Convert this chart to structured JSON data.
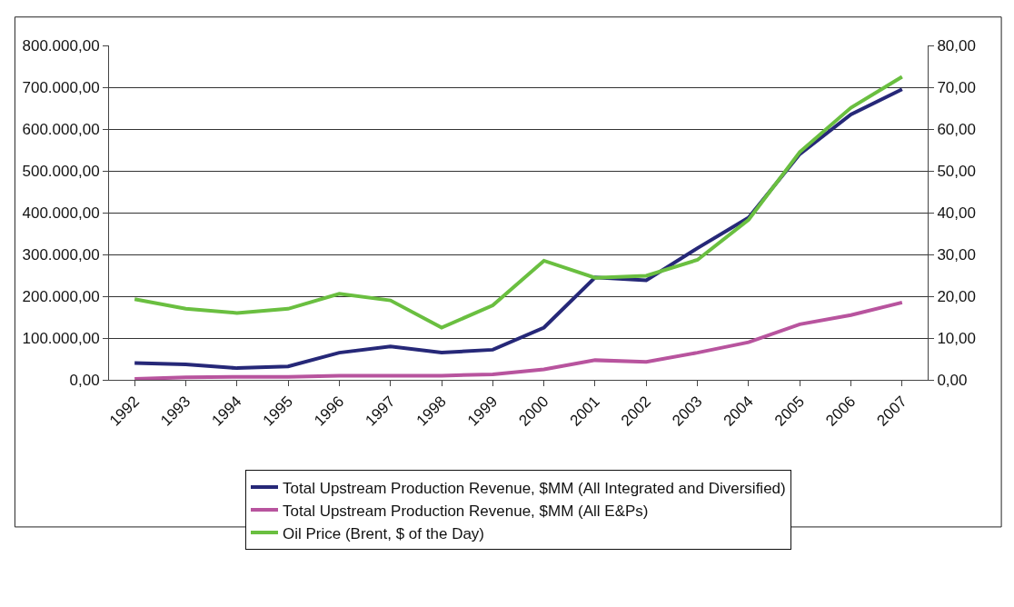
{
  "chart_data": {
    "type": "line",
    "categories": [
      "1992",
      "1993",
      "1994",
      "1995",
      "1996",
      "1997",
      "1998",
      "1999",
      "2000",
      "2001",
      "2002",
      "2003",
      "2004",
      "2005",
      "2006",
      "2007"
    ],
    "series": [
      {
        "name": "Total Upstream Production Revenue, $MM (All Integrated and Diversified)",
        "color": "#262878",
        "values": [
          40000,
          37000,
          28000,
          32000,
          65000,
          80000,
          65000,
          72000,
          125000,
          245000,
          238000,
          315000,
          388000,
          540000,
          635000,
          695000
        ]
      },
      {
        "name": "Total Upstream Production Revenue, $MM (All E&Ps)",
        "color": "#b8549e",
        "values": [
          2000,
          6000,
          7000,
          7000,
          10000,
          10000,
          10000,
          13000,
          25000,
          47000,
          43000,
          65000,
          90000,
          133000,
          155000,
          185000
        ]
      },
      {
        "name": "Oil Price (Brent, $ of the Day)",
        "color": "#6abf40",
        "axis": "y2",
        "values": [
          19.3,
          17.0,
          16.0,
          17.0,
          20.6,
          19.0,
          12.5,
          17.8,
          28.5,
          24.4,
          24.9,
          28.7,
          38.3,
          54.5,
          65.1,
          72.5
        ]
      }
    ],
    "ylim": [
      0,
      800000
    ],
    "yticks": [
      {
        "value": 0,
        "label": "0,00"
      },
      {
        "value": 100000,
        "label": "100.000,00"
      },
      {
        "value": 200000,
        "label": "200.000,00"
      },
      {
        "value": 300000,
        "label": "300.000,00"
      },
      {
        "value": 400000,
        "label": "400.000,00"
      },
      {
        "value": 500000,
        "label": "500.000,00"
      },
      {
        "value": 600000,
        "label": "600.000,00"
      },
      {
        "value": 700000,
        "label": "700.000,00"
      },
      {
        "value": 800000,
        "label": "800.000,00"
      }
    ],
    "y2lim": [
      0,
      80
    ],
    "y2ticks": [
      {
        "value": 0,
        "label": "0,00"
      },
      {
        "value": 10,
        "label": "10,00"
      },
      {
        "value": 20,
        "label": "20,00"
      },
      {
        "value": 30,
        "label": "30,00"
      },
      {
        "value": 40,
        "label": "40,00"
      },
      {
        "value": 50,
        "label": "50,00"
      },
      {
        "value": 60,
        "label": "60,00"
      },
      {
        "value": 70,
        "label": "70,00"
      },
      {
        "value": 80,
        "label": "80,00"
      }
    ],
    "grid": "y",
    "legend": "bottom",
    "marker": "none",
    "line_style": "solid"
  }
}
